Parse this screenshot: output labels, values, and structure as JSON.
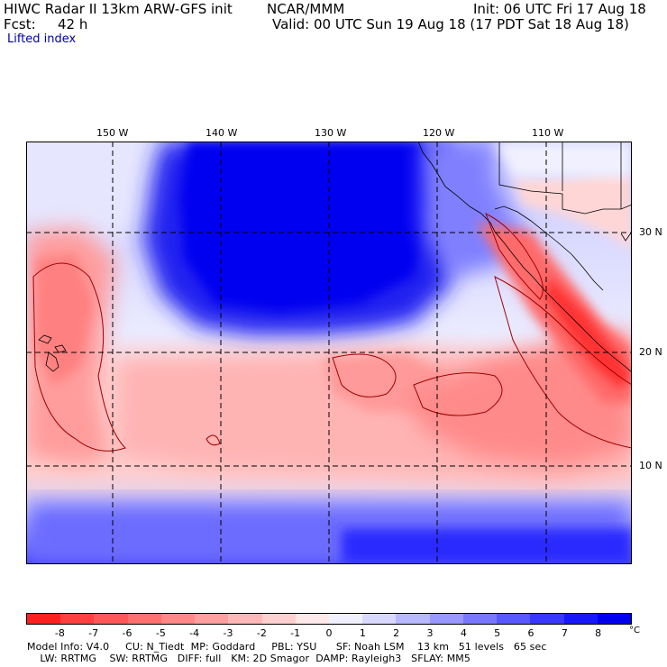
{
  "header": {
    "title_left": "HIWC Radar II 13km ARW-GFS init",
    "center": "NCAR/MMM",
    "init": "Init: 06 UTC Fri 17 Aug 18",
    "fcst_label": "Fcst:",
    "fcst_value": "42 h",
    "valid": "Valid: 00 UTC Sun 19 Aug 18 (17 PDT Sat 18 Aug 18)",
    "field": "Lifted index"
  },
  "map": {
    "lon_labels": [
      "150 W",
      "140 W",
      "130 W",
      "120 W",
      "110 W"
    ],
    "lat_labels": [
      "30 N",
      "20 N",
      "10 N"
    ]
  },
  "colorbar": {
    "labels": [
      "-8",
      "-7",
      "-6",
      "-5",
      "-4",
      "-3",
      "-2",
      "-1",
      "0",
      "1",
      "2",
      "3",
      "4",
      "5",
      "6",
      "7",
      "8"
    ],
    "unit": "°C",
    "colors": [
      "#ff2020",
      "#ff4040",
      "#ff5858",
      "#ff7070",
      "#ff8888",
      "#ffa0a0",
      "#ffb8b8",
      "#ffd0d0",
      "#ffe8e8",
      "#f0f0ff",
      "#d8d8ff",
      "#b8b8ff",
      "#9898ff",
      "#7878ff",
      "#5858ff",
      "#3838ff",
      "#1818ff",
      "#0000f0"
    ]
  },
  "footer": {
    "line1": "Model Info: V4.0     CU: N_Tiedt  MP: Goddard     PBL: YSU      SF: Noah LSM    13 km   51 levels   65 sec",
    "line2": "    LW: RRTMG    SW: RRTMG   DIFF: full   KM: 2D Smagor  DAMP: Rayleigh3   SFLAY: MM5"
  }
}
